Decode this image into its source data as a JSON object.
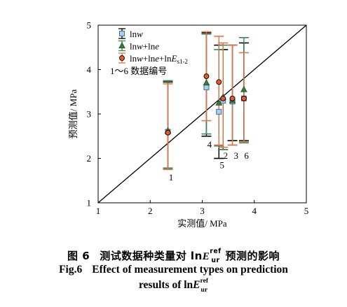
{
  "chart_data": {
    "type": "scatter",
    "xlabel": "实测值/ MPa",
    "ylabel": "预测值/ MPa",
    "xlim": [
      1,
      5
    ],
    "ylim": [
      1,
      5
    ],
    "xticks": [
      "1",
      "2",
      "3",
      "4",
      "5"
    ],
    "yticks": [
      "1",
      "2",
      "3",
      "4",
      "5"
    ],
    "reference_line": "y = x",
    "legend_position": "top-left",
    "legend_note": "1～6 数据编号",
    "series": [
      {
        "name": "lnw",
        "marker": "square",
        "marker_fill": "#a8d0ea",
        "marker_edge": "#3a6ea8",
        "error_color": "#000000",
        "points": [
          {
            "x": 2.34,
            "y": 2.6,
            "lo": 1.78,
            "hi": 3.72
          },
          {
            "x": 3.32,
            "y": 3.05,
            "lo": 2.0,
            "hi": 4.55
          },
          {
            "x": 3.08,
            "y": 3.6,
            "lo": 2.5,
            "hi": 4.83
          },
          {
            "x": 3.4,
            "y": 3.3,
            "lo": 2.2,
            "hi": 4.45
          },
          {
            "x": 3.58,
            "y": 3.28,
            "lo": 2.4,
            "hi": 4.55
          },
          {
            "x": 3.8,
            "y": 3.35,
            "lo": 2.4,
            "hi": 4.6
          }
        ]
      },
      {
        "name": "lnw+lne",
        "marker": "triangle",
        "marker_fill": "#3a7a3a",
        "marker_edge": "#1f4f1f",
        "error_color": "#2e8b57",
        "points": [
          {
            "x": 2.34,
            "y": 2.62,
            "lo": 1.78,
            "hi": 3.75
          },
          {
            "x": 3.32,
            "y": 3.25,
            "lo": 2.28,
            "hi": 4.45
          },
          {
            "x": 3.08,
            "y": 3.7,
            "lo": 2.55,
            "hi": 4.8
          },
          {
            "x": 3.4,
            "y": 3.38,
            "lo": 2.2,
            "hi": 4.55
          },
          {
            "x": 3.58,
            "y": 3.3,
            "lo": 2.3,
            "hi": 4.55
          },
          {
            "x": 3.8,
            "y": 3.55,
            "lo": 2.35,
            "hi": 4.72
          }
        ]
      },
      {
        "name": "lnw+lne+lnE_{s1-2}",
        "marker": "circle",
        "marker_fill": "#e8592a",
        "marker_edge": "#000000",
        "error_color": "#e8714a",
        "points": [
          {
            "x": 2.34,
            "y": 2.58,
            "lo": 1.75,
            "hi": 3.68
          },
          {
            "x": 3.32,
            "y": 3.72,
            "lo": 2.3,
            "hi": 4.75
          },
          {
            "x": 3.08,
            "y": 3.85,
            "lo": 2.85,
            "hi": 4.85
          },
          {
            "x": 3.4,
            "y": 3.35,
            "lo": 2.25,
            "hi": 4.6
          },
          {
            "x": 3.58,
            "y": 3.35,
            "lo": 2.3,
            "hi": 4.55
          },
          {
            "x": 3.8,
            "y": 3.35,
            "lo": 2.38,
            "hi": 4.38
          }
        ]
      }
    ],
    "point_labels": [
      {
        "text": "1",
        "x": 2.4,
        "y": 1.58
      },
      {
        "text": "4",
        "x": 3.14,
        "y": 2.32
      },
      {
        "text": "5",
        "x": 3.38,
        "y": 1.86
      },
      {
        "text": "2",
        "x": 3.45,
        "y": 2.07
      },
      {
        "text": "3",
        "x": 3.65,
        "y": 2.07
      },
      {
        "text": "6",
        "x": 3.85,
        "y": 2.07
      }
    ]
  },
  "legend": {
    "items": [
      {
        "text": "lnw",
        "parts": [
          {
            "t": "ln"
          },
          {
            "t": "w",
            "i": true
          }
        ]
      },
      {
        "text": "lnw+lne",
        "parts": [
          {
            "t": "ln"
          },
          {
            "t": "w",
            "i": true
          },
          {
            "t": "+ln"
          },
          {
            "t": "e",
            "i": true
          }
        ]
      },
      {
        "text": "lnw+lne+lnE_{s1-2}",
        "parts": [
          {
            "t": "ln"
          },
          {
            "t": "w",
            "i": true
          },
          {
            "t": "+ln"
          },
          {
            "t": "e",
            "i": true
          },
          {
            "t": "+ln"
          },
          {
            "t": "E",
            "i": true
          },
          {
            "t": "s1-2",
            "sub": true
          }
        ]
      }
    ]
  },
  "caption": {
    "zh_label": "图 6",
    "zh_text_a": "测试数据种类量对 ln",
    "zh_text_b": "预测的影响",
    "en_label": "Fig.6",
    "en_line1": "Effect of measurement types on prediction",
    "en_line2": "results of  ln",
    "symbol_main": "E",
    "symbol_sup": "ref",
    "symbol_sub": "ur"
  }
}
